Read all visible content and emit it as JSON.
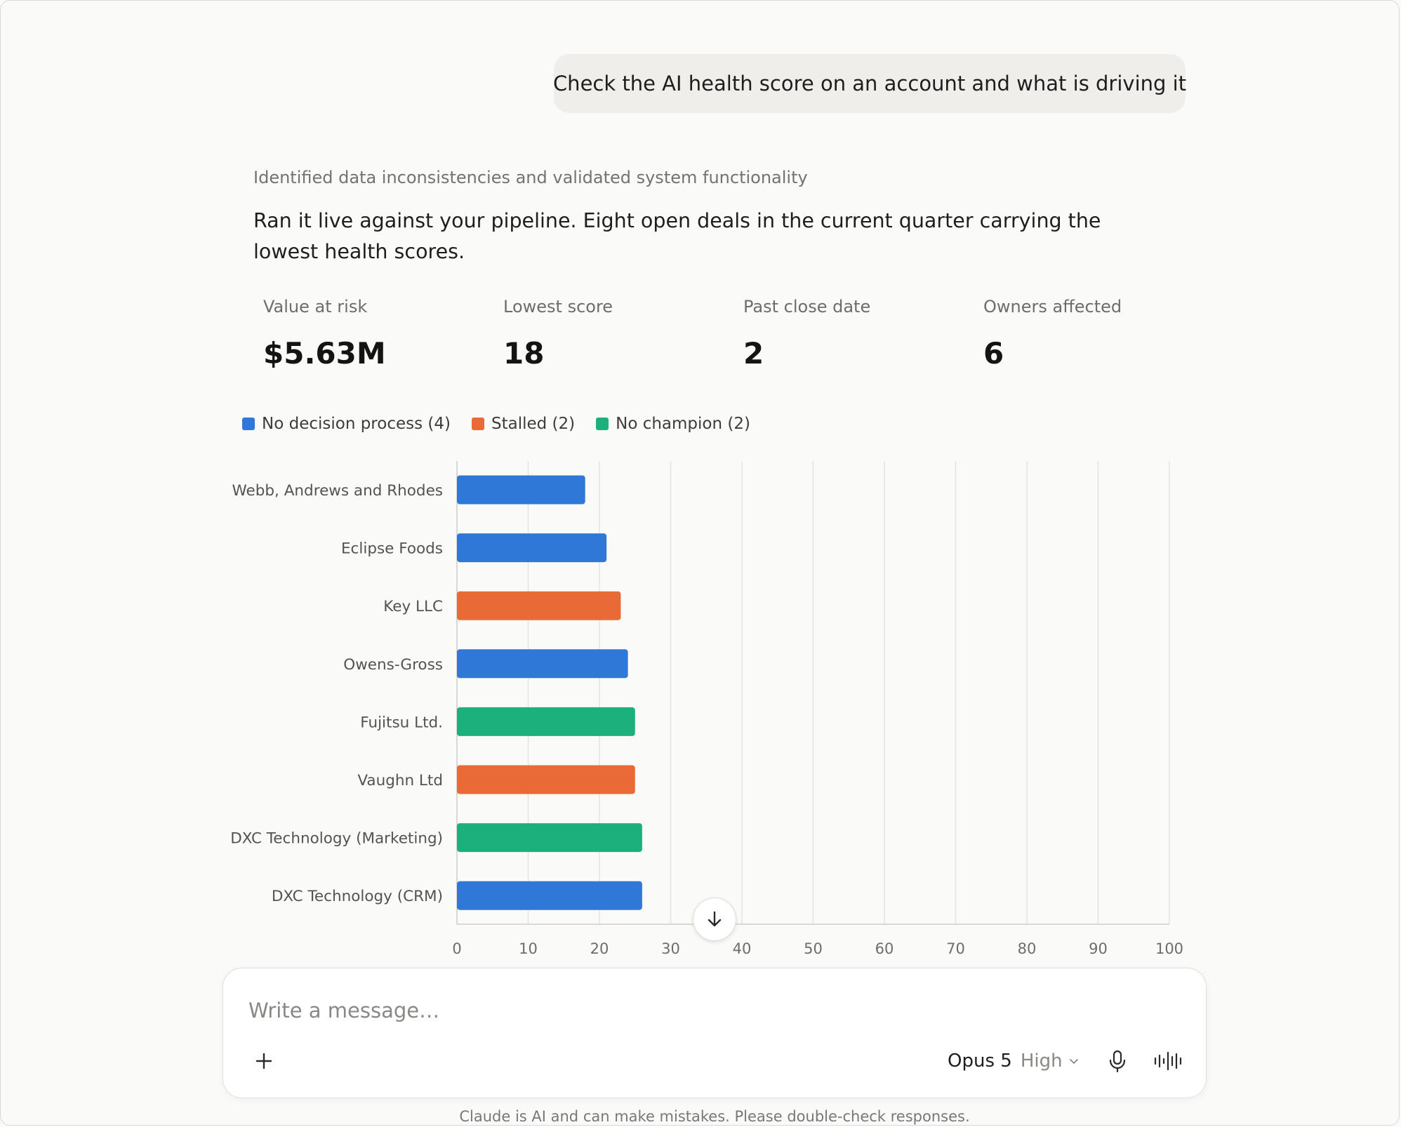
{
  "conversation": {
    "user_message": "Check the AI health score on an account and what is driving it",
    "status_line": "Identified data inconsistencies and validated system functionality",
    "reply_text": "Ran it live against your pipeline. Eight open deals in the current quarter carrying the lowest health scores."
  },
  "stats": [
    {
      "label": "Value at risk",
      "value": "$5.63M"
    },
    {
      "label": "Lowest score",
      "value": "18"
    },
    {
      "label": "Past close date",
      "value": "2"
    },
    {
      "label": "Owners affected",
      "value": "6"
    }
  ],
  "legend": [
    {
      "label": "No decision process (4)",
      "color": "#2f78d7"
    },
    {
      "label": "Stalled (2)",
      "color": "#ea6a37"
    },
    {
      "label": "No champion (2)",
      "color": "#1cb17c"
    }
  ],
  "chart_data": {
    "type": "bar",
    "orientation": "horizontal",
    "categories": [
      "Webb, Andrews and Rhodes",
      "Eclipse Foods",
      "Key LLC",
      "Owens-Gross",
      "Fujitsu Ltd.",
      "Vaughn Ltd",
      "DXC Technology (Marketing)",
      "DXC Technology (CRM)"
    ],
    "values": [
      18,
      21,
      23,
      24,
      25,
      25,
      26,
      26
    ],
    "groups": [
      "No decision process",
      "No decision process",
      "Stalled",
      "No decision process",
      "No champion",
      "Stalled",
      "No champion",
      "No decision process"
    ],
    "group_colors": {
      "No decision process": "#2f78d7",
      "Stalled": "#ea6a37",
      "No champion": "#1cb17c"
    },
    "xlim": [
      0,
      100
    ],
    "xticks": [
      "0",
      "10",
      "20",
      "30",
      "40",
      "50",
      "60",
      "70",
      "80",
      "90",
      "100"
    ],
    "grid": true,
    "legend_position": "top-left"
  },
  "composer": {
    "placeholder": "Write a message…",
    "model_name": "Opus 5",
    "effort": "High",
    "icons": [
      "plus-icon",
      "chevron-down-icon",
      "microphone-icon",
      "voice-waveform-icon",
      "arrow-down-icon"
    ]
  },
  "disclaimer": "Claude is AI and can make mistakes. Please double-check responses."
}
